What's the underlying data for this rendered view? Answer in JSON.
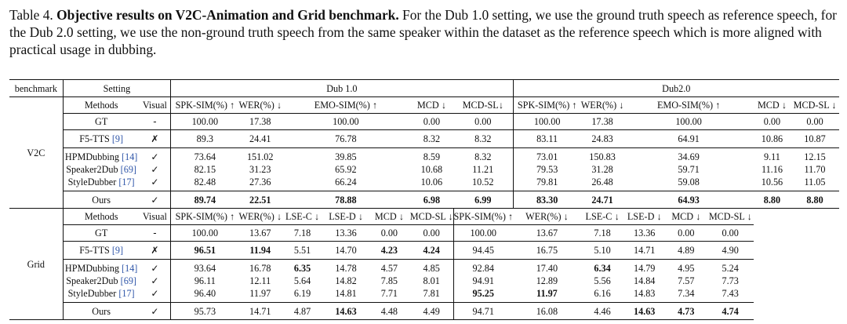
{
  "caption": {
    "prefix": "Table 4.",
    "title": "Objective results on V2C-Animation and Grid benchmark.",
    "body": "For the Dub 1.0 setting, we use the ground truth speech as reference speech, for the Dub 2.0 setting, we use the non-ground truth speech from the same speaker within the dataset as the reference speech which is more aligned with practical usage in dubbing."
  },
  "header": {
    "benchmark": "benchmark",
    "setting": "Setting",
    "dub1": "Dub 1.0",
    "dub2": "Dub2.0"
  },
  "v2c": {
    "label": "V2C",
    "cols": [
      "Methods",
      "Visual",
      "SPK-SIM(%) ↑",
      "WER(%) ↓",
      "EMO-SIM(%) ↑",
      "MCD ↓",
      "MCD-SL↓",
      "SPK-SIM(%) ↑",
      "WER(%) ↓",
      "EMO-SIM(%) ↑",
      "MCD ↓",
      "MCD-SL ↓"
    ],
    "rows": [
      {
        "name": "GT",
        "ref": "",
        "visual": "-",
        "d1": [
          "100.00",
          "17.38",
          "100.00",
          "0.00",
          "0.00"
        ],
        "d2": [
          "100.00",
          "17.38",
          "100.00",
          "0.00",
          "0.00"
        ]
      },
      {
        "name": "F5-TTS",
        "ref": "[9]",
        "visual": "✗",
        "d1": [
          "89.3",
          "24.41",
          "76.78",
          "8.32",
          "8.32"
        ],
        "d2": [
          "83.11",
          "24.83",
          "64.91",
          "10.86",
          "10.87"
        ]
      },
      {
        "name": "HPMDubbing",
        "ref": "[14]",
        "visual": "✓",
        "d1": [
          "73.64",
          "151.02",
          "39.85",
          "8.59",
          "8.32"
        ],
        "d2": [
          "73.01",
          "150.83",
          "34.69",
          "9.11",
          "12.15"
        ]
      },
      {
        "name": "Speaker2Dub",
        "ref": "[69]",
        "visual": "✓",
        "d1": [
          "82.15",
          "31.23",
          "65.92",
          "10.68",
          "11.21"
        ],
        "d2": [
          "79.53",
          "31.28",
          "59.71",
          "11.16",
          "11.70"
        ]
      },
      {
        "name": "StyleDubber",
        "ref": "[17]",
        "visual": "✓",
        "d1": [
          "82.48",
          "27.36",
          "66.24",
          "10.06",
          "10.52"
        ],
        "d2": [
          "79.81",
          "26.48",
          "59.08",
          "10.56",
          "11.05"
        ]
      },
      {
        "name": "Ours",
        "ref": "",
        "visual": "✓",
        "d1": [
          "89.74",
          "22.51",
          "78.88",
          "6.98",
          "6.99"
        ],
        "d2": [
          "83.30",
          "24.71",
          "64.93",
          "8.80",
          "8.80"
        ]
      }
    ]
  },
  "grid": {
    "label": "Grid",
    "cols": [
      "Methods",
      "Visual",
      "SPK-SIM(%) ↑",
      "WER(%) ↓",
      "LSE-C ↓",
      "LSE-D ↓",
      "MCD ↓",
      "MCD-SL ↓",
      "SPK-SIM(%) ↑",
      "WER(%) ↓",
      "LSE-C ↓",
      "LSE-D ↓",
      "MCD ↓",
      "MCD-SL ↓"
    ],
    "rows": [
      {
        "name": "GT",
        "ref": "",
        "visual": "-",
        "d1": [
          "100.00",
          "13.67",
          "7.18",
          "13.36",
          "0.00",
          "0.00"
        ],
        "d2": [
          "100.00",
          "13.67",
          "7.18",
          "13.36",
          "0.00",
          "0.00"
        ]
      },
      {
        "name": "F5-TTS",
        "ref": "[9]",
        "visual": "✗",
        "d1": [
          "96.51",
          "11.94",
          "5.51",
          "14.70",
          "4.23",
          "4.24"
        ],
        "d2": [
          "94.45",
          "16.75",
          "5.10",
          "14.71",
          "4.89",
          "4.90"
        ]
      },
      {
        "name": "HPMDubbing",
        "ref": "[14]",
        "visual": "✓",
        "d1": [
          "93.64",
          "16.78",
          "6.35",
          "14.78",
          "4.57",
          "4.85"
        ],
        "d2": [
          "92.84",
          "17.40",
          "6.34",
          "14.79",
          "4.95",
          "5.24"
        ]
      },
      {
        "name": "Speaker2Dub",
        "ref": "[69]",
        "visual": "✓",
        "d1": [
          "96.11",
          "12.11",
          "5.64",
          "14.82",
          "7.85",
          "8.01"
        ],
        "d2": [
          "94.91",
          "12.89",
          "5.56",
          "14.84",
          "7.57",
          "7.73"
        ]
      },
      {
        "name": "StyleDubber",
        "ref": "[17]",
        "visual": "✓",
        "d1": [
          "96.40",
          "11.97",
          "6.19",
          "14.81",
          "7.71",
          "7.81"
        ],
        "d2": [
          "95.25",
          "11.97",
          "6.16",
          "14.83",
          "7.34",
          "7.43"
        ]
      },
      {
        "name": "Ours",
        "ref": "",
        "visual": "✓",
        "d1": [
          "95.73",
          "14.71",
          "4.87",
          "14.63",
          "4.48",
          "4.49"
        ],
        "d2": [
          "94.71",
          "16.08",
          "4.46",
          "14.63",
          "4.73",
          "4.74"
        ]
      }
    ]
  },
  "bold_cells": {
    "v2c": {
      "5": {
        "d1": [
          0,
          1,
          2,
          3,
          4
        ],
        "d2": [
          0,
          1,
          2,
          3,
          4
        ]
      }
    },
    "grid": {
      "1": {
        "d1": [
          0,
          1,
          4,
          5
        ],
        "d2": []
      },
      "2": {
        "d1": [
          2
        ],
        "d2": [
          2
        ]
      },
      "4": {
        "d1": [],
        "d2": [
          0,
          1
        ]
      },
      "5": {
        "d1": [
          3
        ],
        "d2": [
          3,
          4,
          5
        ]
      }
    }
  }
}
